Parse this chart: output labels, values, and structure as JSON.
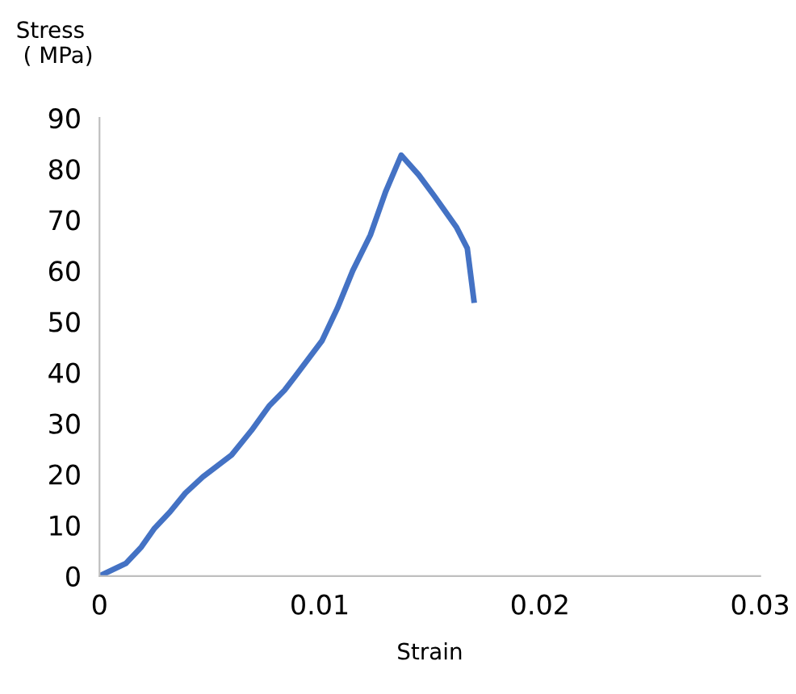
{
  "chart_data": {
    "type": "line",
    "xlabel": "Strain",
    "ylabel": "Stress\n ( MPa)",
    "series": [
      {
        "color": "#4472c4",
        "x": [
          0,
          0.0012,
          0.0019,
          0.0025,
          0.0032,
          0.0039,
          0.0047,
          0.006,
          0.0069,
          0.0077,
          0.0084,
          0.0089,
          0.0101,
          0.0108,
          0.0115,
          0.0123,
          0.013,
          0.0137,
          0.0145,
          0.0152,
          0.0162,
          0.0167,
          0.017
        ],
        "values": [
          0,
          2.5,
          5.7,
          9.4,
          12.6,
          16.3,
          19.5,
          23.8,
          28.6,
          33.4,
          36.5,
          39.3,
          46.2,
          52.6,
          60,
          67,
          75.6,
          82.7,
          78.8,
          74.7,
          68.6,
          64.4,
          54.2
        ]
      }
    ],
    "xlim": [
      0,
      0.03
    ],
    "xticks": [
      0,
      0.01,
      0.02,
      0.03
    ],
    "ylim": [
      0,
      90
    ],
    "yticks": [
      0,
      10,
      20,
      30,
      40,
      50,
      60,
      70,
      80,
      90
    ],
    "grid": false,
    "legend": false,
    "marker": "none",
    "line_style": "solid"
  }
}
